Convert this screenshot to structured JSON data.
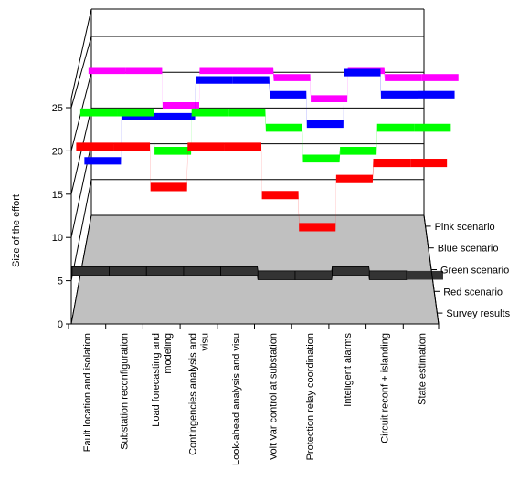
{
  "chart_data": {
    "type": "line",
    "subtype": "3d-ribbon",
    "ylabel": "Size of the effort",
    "xlabel": "",
    "title": "",
    "ylim": [
      0,
      25
    ],
    "y_ticks": [
      0,
      5,
      10,
      15,
      20,
      25
    ],
    "grid": true,
    "floor_color": "#c0c0c0",
    "categories": [
      "Fault location and isolation",
      "Substation reconfiguration",
      "Load forecasting and\nmodeling",
      "Contingencies analysis and\nvisu",
      "Look-ahead analysis and visu",
      "Volt Var control at substation",
      "Protection relay coordination",
      "Inteligent alarms",
      "Circuit reconf + islanding",
      "State estimation"
    ],
    "series": [
      {
        "name": "Pink scenario",
        "color": "#ff00ff",
        "values": [
          24,
          24,
          19,
          24,
          24,
          23,
          20,
          24,
          23,
          23
        ]
      },
      {
        "name": "Blue scenario",
        "color": "#0000ff",
        "values": [
          13,
          19,
          19,
          24,
          24,
          22,
          18,
          25,
          22,
          22
        ]
      },
      {
        "name": "Green scenario",
        "color": "#00ff00",
        "values": [
          21,
          21,
          16,
          21,
          21,
          19,
          15,
          16,
          19,
          19
        ]
      },
      {
        "name": "Red scenario",
        "color": "#ff0000",
        "values": [
          18,
          18,
          13,
          18,
          18,
          12,
          8,
          14,
          16,
          16
        ]
      },
      {
        "name": "Survey results",
        "color": "#333333",
        "values": [
          4.5,
          4.5,
          4.5,
          4.5,
          4.5,
          4,
          4,
          4.5,
          4,
          4
        ]
      }
    ]
  }
}
